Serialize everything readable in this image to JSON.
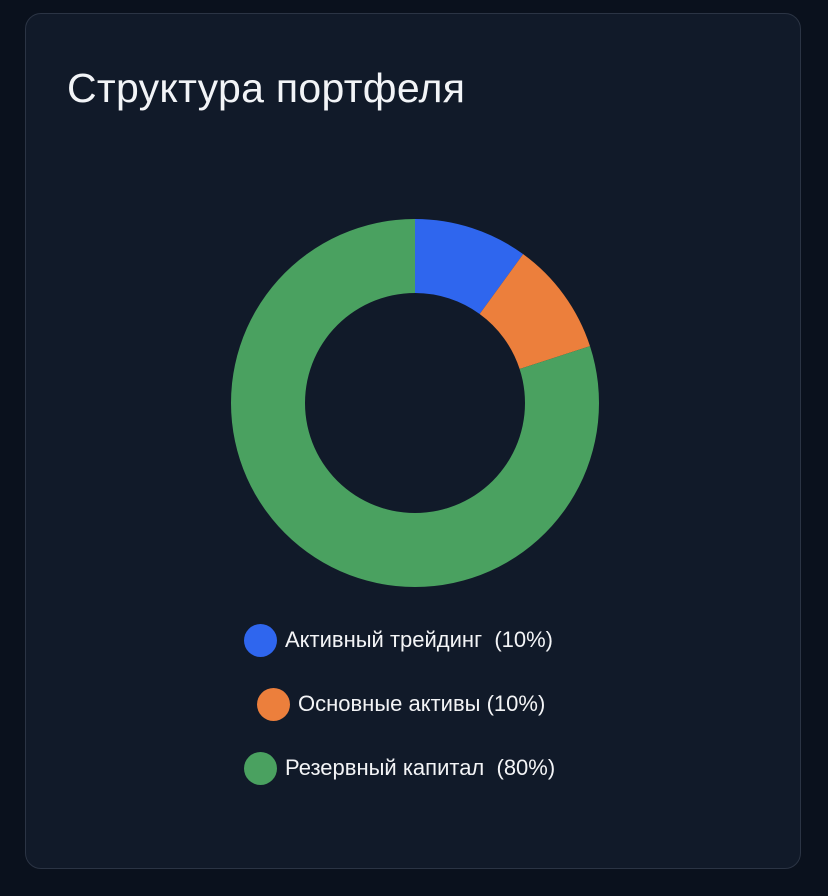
{
  "card": {
    "title": "Структура портфеля"
  },
  "chart_data": {
    "type": "pie",
    "style": "donut",
    "slices": [
      {
        "label": "Активный трейдинг  (10%)",
        "value": 10,
        "color": "#2f66ee"
      },
      {
        "label": "Основные активы (10%)",
        "value": 10,
        "color": "#ec7f3c"
      },
      {
        "label": "Резервный капитал  (80%)",
        "value": 80,
        "color": "#4aa160"
      }
    ],
    "legend_position": "bottom-center"
  }
}
